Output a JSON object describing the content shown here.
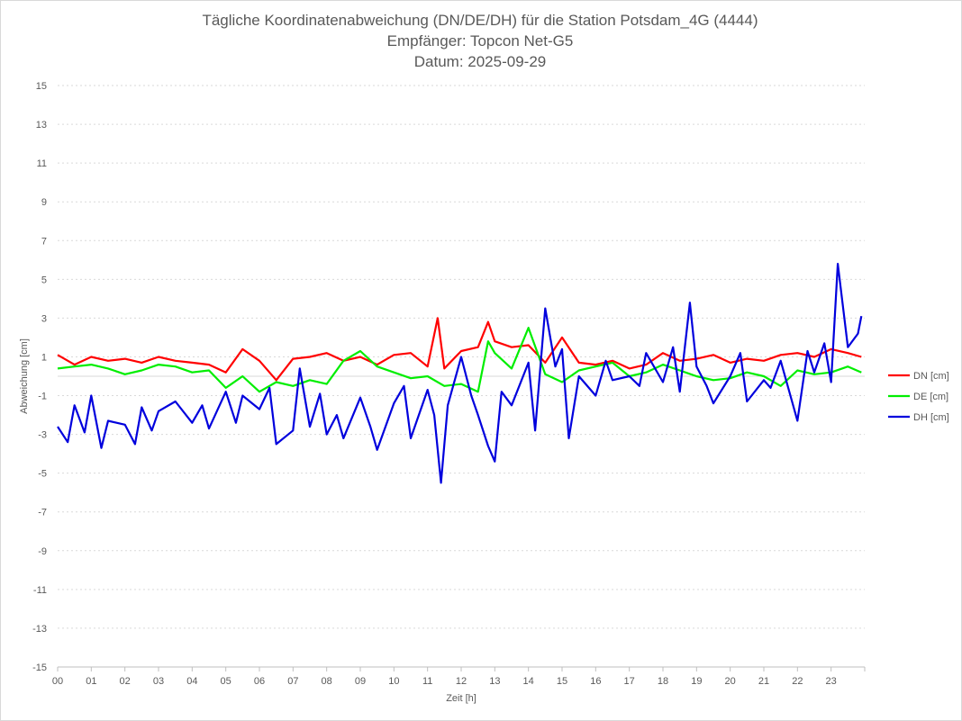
{
  "chart_data": {
    "type": "line",
    "title_lines": [
      "Tägliche Koordinatenabweichung (DN/DE/DH) für die Station Potsdam_4G (4444)",
      "Empfänger: Topcon Net-G5",
      "Datum: 2025-09-29"
    ],
    "xlabel": "Zeit [h]",
    "ylabel": "Abweichung [cm]",
    "xlim": [
      0,
      24
    ],
    "ylim": [
      -15,
      15
    ],
    "x_ticks": [
      "00",
      "01",
      "02",
      "03",
      "04",
      "05",
      "06",
      "07",
      "08",
      "09",
      "10",
      "11",
      "12",
      "13",
      "14",
      "15",
      "16",
      "17",
      "18",
      "19",
      "20",
      "21",
      "22",
      "23"
    ],
    "y_ticks": [
      "15",
      "13",
      "11",
      "9",
      "7",
      "5",
      "3",
      "1",
      "-1",
      "-3",
      "-5",
      "-7",
      "-9",
      "-11",
      "-13",
      "-15"
    ],
    "grid": true,
    "legend_position": "right",
    "series": [
      {
        "name": "DN [cm]",
        "color": "#ff0000",
        "x": [
          0,
          0.5,
          1,
          1.5,
          2,
          2.5,
          3,
          3.5,
          4,
          4.5,
          5,
          5.5,
          6,
          6.5,
          7,
          7.5,
          8,
          8.5,
          9,
          9.5,
          10,
          10.5,
          11,
          11.3,
          11.5,
          12,
          12.5,
          12.8,
          13,
          13.5,
          14,
          14.5,
          15,
          15.5,
          16,
          16.5,
          17,
          17.5,
          18,
          18.5,
          19,
          19.5,
          20,
          20.5,
          21,
          21.5,
          22,
          22.5,
          23,
          23.5,
          23.9
        ],
        "values": [
          1.1,
          0.6,
          1.0,
          0.8,
          0.9,
          0.7,
          1.0,
          0.8,
          0.7,
          0.6,
          0.2,
          1.4,
          0.8,
          -0.2,
          0.9,
          1.0,
          1.2,
          0.8,
          1.0,
          0.6,
          1.1,
          1.2,
          0.5,
          3.0,
          0.4,
          1.3,
          1.5,
          2.8,
          1.8,
          1.5,
          1.6,
          0.7,
          2.0,
          0.7,
          0.6,
          0.8,
          0.4,
          0.6,
          1.2,
          0.8,
          0.9,
          1.1,
          0.7,
          0.9,
          0.8,
          1.1,
          1.2,
          1.0,
          1.4,
          1.2,
          1.0
        ]
      },
      {
        "name": "DE [cm]",
        "color": "#00ee00",
        "x": [
          0,
          0.5,
          1,
          1.5,
          2,
          2.5,
          3,
          3.5,
          4,
          4.5,
          5,
          5.5,
          6,
          6.5,
          7,
          7.5,
          8,
          8.5,
          9,
          9.5,
          10,
          10.5,
          11,
          11.5,
          12,
          12.5,
          12.8,
          13,
          13.5,
          14,
          14.5,
          15,
          15.5,
          16,
          16.5,
          17,
          17.5,
          18,
          18.5,
          19,
          19.5,
          20,
          20.5,
          21,
          21.5,
          22,
          22.5,
          23,
          23.5,
          23.9
        ],
        "values": [
          0.4,
          0.5,
          0.6,
          0.4,
          0.1,
          0.3,
          0.6,
          0.5,
          0.2,
          0.3,
          -0.6,
          0.0,
          -0.8,
          -0.3,
          -0.5,
          -0.2,
          -0.4,
          0.8,
          1.3,
          0.5,
          0.2,
          -0.1,
          0.0,
          -0.5,
          -0.4,
          -0.8,
          1.8,
          1.2,
          0.4,
          2.5,
          0.1,
          -0.3,
          0.3,
          0.5,
          0.7,
          0.0,
          0.2,
          0.6,
          0.3,
          0.0,
          -0.2,
          -0.1,
          0.2,
          0.0,
          -0.5,
          0.3,
          0.1,
          0.2,
          0.5,
          0.2
        ]
      },
      {
        "name": "DH [cm]",
        "color": "#0000dd",
        "x": [
          0,
          0.3,
          0.5,
          0.8,
          1,
          1.3,
          1.5,
          2,
          2.3,
          2.5,
          2.8,
          3,
          3.5,
          4,
          4.3,
          4.5,
          5,
          5.3,
          5.5,
          6,
          6.3,
          6.5,
          7,
          7.2,
          7.5,
          7.8,
          8,
          8.3,
          8.5,
          9,
          9.3,
          9.5,
          10,
          10.3,
          10.5,
          11,
          11.2,
          11.4,
          11.6,
          12,
          12.3,
          12.5,
          12.8,
          13,
          13.2,
          13.5,
          14,
          14.2,
          14.5,
          14.8,
          15,
          15.2,
          15.5,
          16,
          16.3,
          16.5,
          17,
          17.3,
          17.5,
          18,
          18.3,
          18.5,
          18.8,
          19,
          19.3,
          19.5,
          20,
          20.3,
          20.5,
          21,
          21.2,
          21.5,
          22,
          22.3,
          22.5,
          22.8,
          23,
          23.2,
          23.5,
          23.8,
          23.9
        ],
        "values": [
          -2.6,
          -3.4,
          -1.5,
          -2.9,
          -1.0,
          -3.7,
          -2.3,
          -2.5,
          -3.5,
          -1.6,
          -2.8,
          -1.8,
          -1.3,
          -2.4,
          -1.5,
          -2.7,
          -0.8,
          -2.4,
          -1.0,
          -1.7,
          -0.6,
          -3.5,
          -2.8,
          0.4,
          -2.6,
          -0.9,
          -3.0,
          -2.0,
          -3.2,
          -1.1,
          -2.6,
          -3.8,
          -1.4,
          -0.5,
          -3.2,
          -0.7,
          -2.0,
          -5.5,
          -1.5,
          1.0,
          -1.0,
          -2.0,
          -3.6,
          -4.4,
          -0.8,
          -1.5,
          0.7,
          -2.8,
          3.5,
          0.5,
          1.4,
          -3.2,
          0.0,
          -1.0,
          0.8,
          -0.2,
          0.0,
          -0.5,
          1.2,
          -0.3,
          1.5,
          -0.8,
          3.8,
          0.5,
          -0.5,
          -1.4,
          0.0,
          1.2,
          -1.3,
          -0.2,
          -0.6,
          0.8,
          -2.3,
          1.3,
          0.2,
          1.7,
          -0.3,
          5.8,
          1.5,
          2.2,
          3.1
        ]
      }
    ]
  }
}
